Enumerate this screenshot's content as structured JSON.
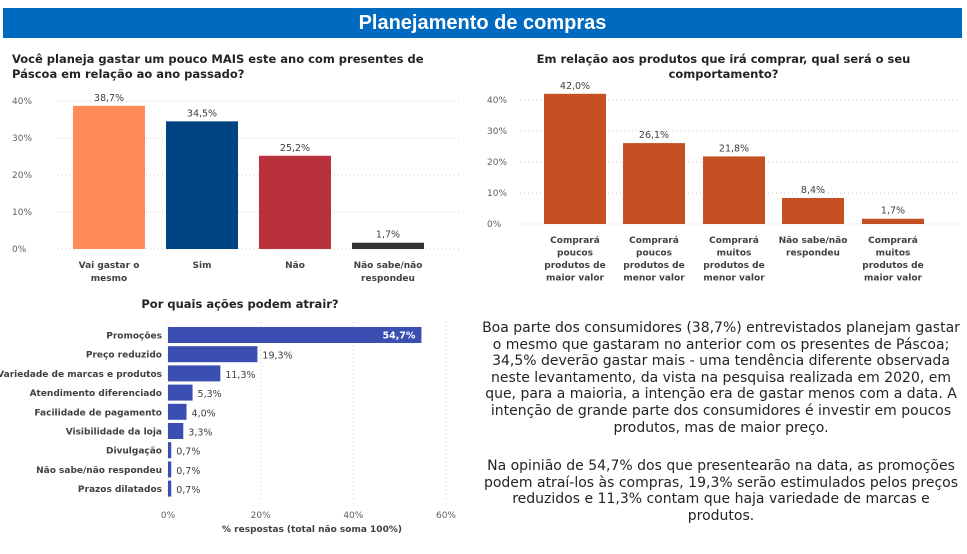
{
  "header": {
    "title": "Planejamento de compras"
  },
  "colors": {
    "header_bg": "#0069c0",
    "chart1": [
      "#ff8b5a",
      "#004481",
      "#b9313c",
      "#333333"
    ],
    "chart2": "#c55023",
    "chart3": "#3b4fb3"
  },
  "chart_data": [
    {
      "id": "spend_more",
      "type": "bar",
      "title": "Você planeja gastar um pouco MAIS este ano com presentes de Páscoa em relação ao ano passado?",
      "categories": [
        "Vai gastar o mesmo",
        "Sim",
        "Não",
        "Não sabe/não respondeu"
      ],
      "category_lines": [
        [
          "Vai gastar o",
          "mesmo"
        ],
        [
          "Sim"
        ],
        [
          "Não"
        ],
        [
          "Não sabe/não",
          "respondeu"
        ]
      ],
      "values": [
        38.7,
        34.5,
        25.2,
        1.7
      ],
      "data_labels": [
        "38,7%",
        "34,5%",
        "25,2%",
        "1,7%"
      ],
      "yticks": [
        0,
        10,
        20,
        30,
        40
      ],
      "ytick_labels": [
        "0%",
        "10%",
        "20%",
        "30%",
        "40%"
      ],
      "ylim": [
        0,
        40
      ],
      "xlabel": "",
      "ylabel": "",
      "grid": true
    },
    {
      "id": "behavior",
      "type": "bar",
      "title": "Em relação aos produtos que irá comprar, qual será o seu comportamento?",
      "categories": [
        "Comprará poucos produtos de maior valor",
        "Comprará poucos produtos de menor valor",
        "Comprará muitos produtos de menor valor",
        "Não sabe/não respondeu",
        "Comprará muitos produtos de maior valor"
      ],
      "category_lines": [
        [
          "Comprará",
          "poucos",
          "produtos de",
          "maior valor"
        ],
        [
          "Comprará",
          "poucos",
          "produtos de",
          "menor valor"
        ],
        [
          "Comprará",
          "muitos",
          "produtos de",
          "menor valor"
        ],
        [
          "Não sabe/não",
          "respondeu"
        ],
        [
          "Comprará",
          "muitos",
          "produtos de",
          "maior valor"
        ]
      ],
      "values": [
        42.0,
        26.1,
        21.8,
        8.4,
        1.7
      ],
      "data_labels": [
        "42,0%",
        "26,1%",
        "21,8%",
        "8,4%",
        "1,7%"
      ],
      "yticks": [
        0,
        10,
        20,
        30,
        40
      ],
      "ytick_labels": [
        "0%",
        "10%",
        "20%",
        "30%",
        "40%"
      ],
      "ylim": [
        0,
        40
      ],
      "xlabel": "",
      "ylabel": "",
      "grid": true
    },
    {
      "id": "actions",
      "type": "bar",
      "orientation": "horizontal",
      "title": "Por quais ações podem atrair?",
      "categories": [
        "Promoções",
        "Preço reduzido",
        "Variedade de marcas e produtos",
        "Atendimento diferenciado",
        "Facilidade de pagamento",
        "Visibilidade da loja",
        "Divulgação",
        "Não sabe/não respondeu",
        "Prazos dilatados"
      ],
      "values": [
        54.7,
        19.3,
        11.3,
        5.3,
        4.0,
        3.3,
        0.7,
        0.7,
        0.7
      ],
      "data_labels": [
        "54,7%",
        "19,3%",
        "11,3%",
        "5,3%",
        "4,0%",
        "3,3%",
        "0,7%",
        "0,7%",
        "0,7%"
      ],
      "xticks": [
        0,
        20,
        40,
        60
      ],
      "xtick_labels": [
        "0%",
        "20%",
        "40%",
        "60%"
      ],
      "xlim": [
        0,
        60
      ],
      "xlabel": "% respostas (total não soma 100%)",
      "ylabel": "",
      "grid": true
    }
  ],
  "narrative": {
    "paragraph1": "Boa parte dos consumidores (38,7%) entrevistados planejam gastar o mesmo que gastaram no anterior com os presentes de Páscoa; 34,5% deverão gastar mais - uma tendência diferente observada neste levantamento, da vista na pesquisa realizada em 2020, em que, para a maioria, a intenção era de gastar menos com a data. A intenção de grande parte dos consumidores é investir em poucos produtos, mas de maior preço.",
    "paragraph2": "Na opinião de 54,7% dos que presentearão na data, as promoções podem atraí-los às compras, 19,3% serão estimulados pelos preços reduzidos e 11,3% contam que haja variedade de marcas e produtos."
  }
}
